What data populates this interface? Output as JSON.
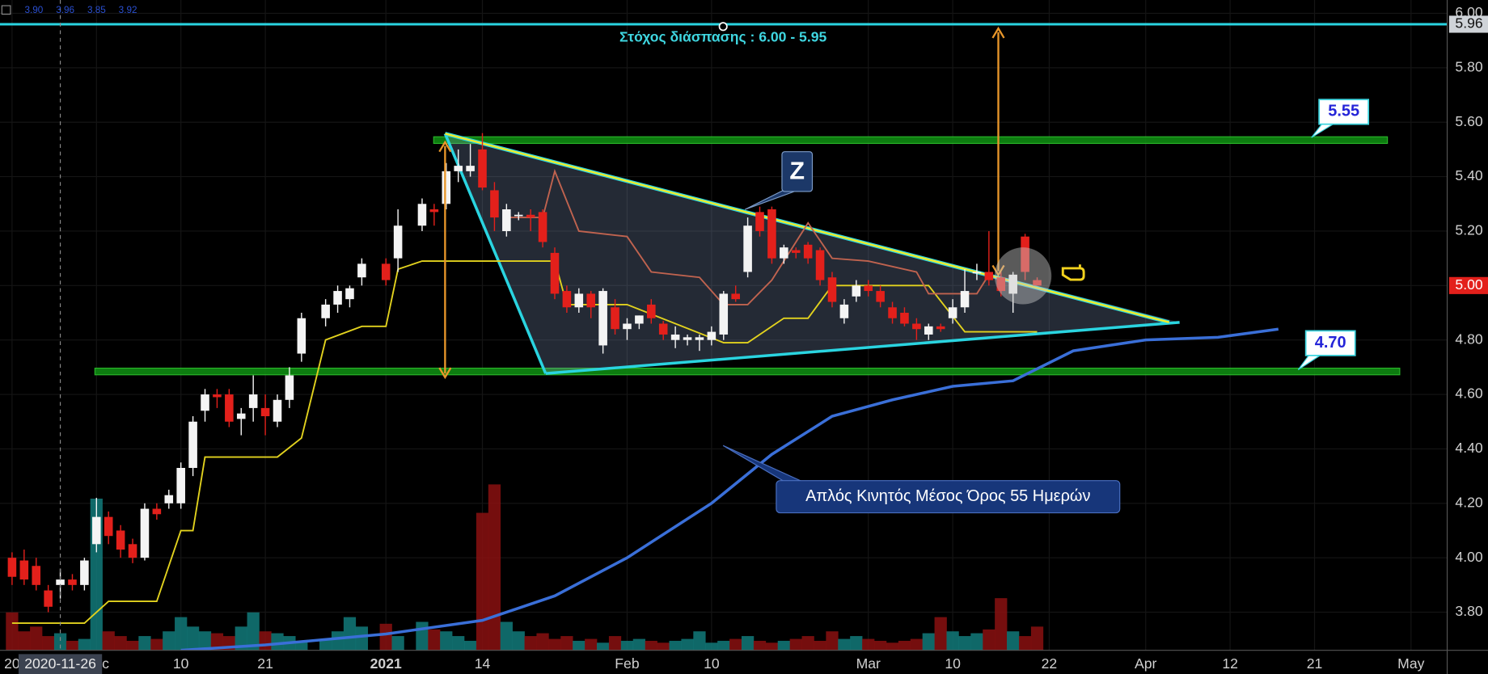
{
  "chart_data": {
    "type": "candlestick",
    "x": [
      "2020-11-20",
      "2020-11-23",
      "2020-11-24",
      "2020-11-25",
      "2020-11-26",
      "2020-11-27",
      "2020-11-30",
      "2020-12-01",
      "2020-12-02",
      "2020-12-03",
      "2020-12-04",
      "2020-12-07",
      "2020-12-08",
      "2020-12-09",
      "2020-12-10",
      "2020-12-11",
      "2020-12-14",
      "2020-12-15",
      "2020-12-16",
      "2020-12-17",
      "2020-12-18",
      "2020-12-21",
      "2020-12-22",
      "2020-12-23",
      "2020-12-24",
      "2020-12-28",
      "2020-12-29",
      "2020-12-30",
      "2020-12-31",
      "2021-01-04",
      "2021-01-05",
      "2021-01-07",
      "2021-01-08",
      "2021-01-11",
      "2021-01-12",
      "2021-01-13",
      "2021-01-14",
      "2021-01-15",
      "2021-01-18",
      "2021-01-19",
      "2021-01-20",
      "2021-01-21",
      "2021-01-22",
      "2021-01-25",
      "2021-01-26",
      "2021-01-27",
      "2021-01-28",
      "2021-01-29",
      "2021-02-01",
      "2021-02-02",
      "2021-02-03",
      "2021-02-04",
      "2021-02-05",
      "2021-02-08",
      "2021-02-09",
      "2021-02-10",
      "2021-02-11",
      "2021-02-12",
      "2021-02-15",
      "2021-02-16",
      "2021-02-17",
      "2021-02-18",
      "2021-02-19",
      "2021-02-22",
      "2021-02-23",
      "2021-02-24",
      "2021-02-25",
      "2021-02-26",
      "2021-03-01",
      "2021-03-02",
      "2021-03-03",
      "2021-03-04",
      "2021-03-05",
      "2021-03-08",
      "2021-03-09",
      "2021-03-10",
      "2021-03-11",
      "2021-03-12",
      "2021-03-15",
      "2021-03-16",
      "2021-03-17",
      "2021-03-18",
      "2021-03-19"
    ],
    "open": [
      4.0,
      3.99,
      3.97,
      3.88,
      3.9,
      3.92,
      3.9,
      4.05,
      4.15,
      4.1,
      4.05,
      4.0,
      4.18,
      4.2,
      4.2,
      4.33,
      4.54,
      4.6,
      4.6,
      4.51,
      4.55,
      4.55,
      4.5,
      4.58,
      4.75,
      4.88,
      4.93,
      4.95,
      5.03,
      5.08,
      5.1,
      5.22,
      5.28,
      5.3,
      5.42,
      5.42,
      5.5,
      5.35,
      5.2,
      5.26,
      5.26,
      5.27,
      5.12,
      4.98,
      4.92,
      4.97,
      4.78,
      4.92,
      4.84,
      4.86,
      4.93,
      4.86,
      4.8,
      4.8,
      4.8,
      4.8,
      4.82,
      4.97,
      5.05,
      5.27,
      5.28,
      5.1,
      5.13,
      5.15,
      5.13,
      5.03,
      4.88,
      4.96,
      5.0,
      4.98,
      4.92,
      4.9,
      4.86,
      4.82,
      4.85,
      4.88,
      4.92,
      5.05,
      5.05,
      5.03,
      4.97,
      5.18,
      5.02
    ],
    "high": [
      4.02,
      4.03,
      4.0,
      3.9,
      3.96,
      3.94,
      4.0,
      4.22,
      4.17,
      4.12,
      4.07,
      4.2,
      4.2,
      4.25,
      4.35,
      4.52,
      4.62,
      4.62,
      4.62,
      4.55,
      4.67,
      4.6,
      4.6,
      4.7,
      4.9,
      4.95,
      5.0,
      5.0,
      5.1,
      5.1,
      5.28,
      5.32,
      5.3,
      5.45,
      5.5,
      5.52,
      5.56,
      5.38,
      5.3,
      5.27,
      5.28,
      5.28,
      5.14,
      5.0,
      4.99,
      4.98,
      4.99,
      4.95,
      4.88,
      4.89,
      4.95,
      4.87,
      4.85,
      4.82,
      4.82,
      4.85,
      4.98,
      5.0,
      5.25,
      5.29,
      5.29,
      5.15,
      5.14,
      5.16,
      5.14,
      5.05,
      4.95,
      5.02,
      5.02,
      5.0,
      4.94,
      4.92,
      4.88,
      4.86,
      4.86,
      4.95,
      5.06,
      5.08,
      5.2,
      5.05,
      5.05,
      5.19,
      5.03
    ],
    "low": [
      3.9,
      3.9,
      3.88,
      3.8,
      3.85,
      3.88,
      3.88,
      4.02,
      4.05,
      4.0,
      3.98,
      3.99,
      4.14,
      4.18,
      4.18,
      4.3,
      4.5,
      4.55,
      4.48,
      4.45,
      4.5,
      4.45,
      4.48,
      4.55,
      4.72,
      4.85,
      4.9,
      4.92,
      5.0,
      5.0,
      5.05,
      5.2,
      5.22,
      5.28,
      5.38,
      5.4,
      5.35,
      5.2,
      5.18,
      5.24,
      5.2,
      5.14,
      4.95,
      4.9,
      4.9,
      4.88,
      4.75,
      4.82,
      4.8,
      4.84,
      4.86,
      4.8,
      4.77,
      4.78,
      4.76,
      4.78,
      4.8,
      4.94,
      5.03,
      5.18,
      5.08,
      5.08,
      5.1,
      5.08,
      5.0,
      4.92,
      4.86,
      4.94,
      4.96,
      4.92,
      4.86,
      4.85,
      4.8,
      4.8,
      4.83,
      4.86,
      4.9,
      5.02,
      5.0,
      4.96,
      4.9,
      5.02,
      5.0
    ],
    "close": [
      3.93,
      3.92,
      3.9,
      3.82,
      3.92,
      3.9,
      3.99,
      4.15,
      4.08,
      4.03,
      4.0,
      4.18,
      4.16,
      4.23,
      4.33,
      4.5,
      4.6,
      4.59,
      4.5,
      4.53,
      4.6,
      4.52,
      4.58,
      4.67,
      4.88,
      4.93,
      4.98,
      4.99,
      5.08,
      5.02,
      5.22,
      5.3,
      5.27,
      5.42,
      5.44,
      5.44,
      5.36,
      5.25,
      5.28,
      5.26,
      5.25,
      5.16,
      4.97,
      4.92,
      4.97,
      4.92,
      4.98,
      4.84,
      4.86,
      4.89,
      4.88,
      4.82,
      4.82,
      4.81,
      4.81,
      4.83,
      4.97,
      4.95,
      5.22,
      5.2,
      5.1,
      5.14,
      5.12,
      5.1,
      5.02,
      4.94,
      4.93,
      5.0,
      4.98,
      4.94,
      4.88,
      4.86,
      4.84,
      4.85,
      4.84,
      4.92,
      4.98,
      5.05,
      5.02,
      4.98,
      5.04,
      5.05,
      5.0
    ],
    "volume": [
      40,
      20,
      25,
      15,
      18,
      10,
      12,
      160,
      20,
      15,
      10,
      15,
      12,
      20,
      35,
      25,
      20,
      18,
      15,
      25,
      40,
      20,
      18,
      15,
      10,
      12,
      20,
      35,
      25,
      28,
      15,
      30,
      22,
      20,
      15,
      10,
      145,
      175,
      30,
      20,
      15,
      18,
      12,
      15,
      10,
      12,
      8,
      15,
      10,
      12,
      10,
      8,
      10,
      12,
      20,
      8,
      10,
      12,
      15,
      10,
      8,
      10,
      12,
      15,
      10,
      20,
      12,
      15,
      12,
      10,
      8,
      10,
      12,
      18,
      35,
      20,
      15,
      18,
      22,
      55,
      20,
      15,
      25
    ],
    "up_color": "#f4f4f4",
    "down_color": "#e3201b",
    "volume_up_color": "#127a7a",
    "volume_down_color": "#8a1010",
    "indicators": [
      {
        "color": "#3a6fd8",
        "x": [
          "2020-12-10",
          "2020-12-21",
          "2021-01-04",
          "2021-01-14",
          "2021-01-22",
          "2021-02-01",
          "2021-02-10",
          "2021-02-17",
          "2021-02-24",
          "2021-03-03",
          "2021-03-10",
          "2021-03-17",
          "2021-03-24",
          "2021-04-01",
          "2021-04-09",
          "2021-04-16"
        ],
        "values": [
          3.66,
          3.68,
          3.72,
          3.77,
          3.86,
          4.0,
          4.2,
          4.38,
          4.52,
          4.58,
          4.63,
          4.65,
          4.76,
          4.8,
          4.81,
          4.84
        ]
      },
      {
        "color": "#e2d21e",
        "x": [
          "2020-11-20",
          "2020-11-30",
          "2020-12-02",
          "2020-12-08",
          "2020-12-10",
          "2020-12-11",
          "2020-12-14",
          "2020-12-22",
          "2020-12-24",
          "2020-12-28",
          "2020-12-31",
          "2021-01-04",
          "2021-01-05",
          "2021-01-07",
          "2021-01-22",
          "2021-01-25",
          "2021-02-01",
          "2021-02-11",
          "2021-02-15",
          "2021-02-18",
          "2021-02-22",
          "2021-02-24",
          "2021-03-08",
          "2021-03-11",
          "2021-03-19"
        ],
        "values": [
          3.76,
          3.76,
          3.84,
          3.84,
          4.1,
          4.1,
          4.37,
          4.37,
          4.44,
          4.8,
          4.85,
          4.85,
          5.06,
          5.09,
          5.09,
          4.93,
          4.93,
          4.79,
          4.79,
          4.88,
          4.88,
          5.0,
          5.0,
          4.83,
          4.83
        ]
      },
      {
        "color": "#c0634f",
        "x": [
          "2021-01-18",
          "2021-01-21",
          "2021-01-22",
          "2021-01-26",
          "2021-02-01",
          "2021-02-03",
          "2021-02-09",
          "2021-02-11",
          "2021-02-15",
          "2021-02-17",
          "2021-02-22",
          "2021-02-24",
          "2021-03-01",
          "2021-03-05",
          "2021-03-08",
          "2021-03-12",
          "2021-03-15"
        ],
        "values": [
          5.25,
          5.25,
          5.42,
          5.2,
          5.18,
          5.05,
          5.03,
          4.93,
          4.93,
          5.02,
          5.23,
          5.1,
          5.09,
          5.05,
          4.97,
          4.97,
          5.04
        ]
      }
    ],
    "levels": [
      5.55,
      {
        "value": 4.7,
        "label": "4.70"
      }
    ],
    "target_line": {
      "value": 5.96,
      "label": "5.96"
    },
    "last_price": {
      "value": 5,
      "label": "5.00"
    },
    "target_label": "Στόχος διάσπασης : 6.00 - 5.95",
    "pattern_label": "Z",
    "sma_label": "Απλός Κινητός Μέσος Όρος 55 Ημερών",
    "crosshair": {
      "date": "2020-11-26",
      "ohlc": [
        {
          "value": 3.9,
          "label": "3.90"
        },
        3.96,
        3.85,
        3.92
      ]
    },
    "xlim": [
      "2020-11-19",
      "2021-05-06"
    ],
    "xticks": [
      {
        "value": "2020-11-20",
        "label": "20"
      },
      {
        "value": "2020-12-01",
        "label": "Dec"
      },
      {
        "value": "2020-12-10",
        "label": "10"
      },
      {
        "value": "2020-12-21",
        "label": "21"
      },
      {
        "value": "2021-01-04",
        "label": "2021"
      },
      {
        "value": "2021-01-14",
        "label": "14"
      },
      {
        "value": "2021-02-01",
        "label": "Feb"
      },
      {
        "value": "2021-02-10",
        "label": "10"
      },
      {
        "value": "2021-03-01",
        "label": "Mar"
      },
      {
        "value": "2021-03-10",
        "label": "10"
      },
      {
        "value": "2021-03-22",
        "label": "22"
      },
      {
        "value": "2021-04-01",
        "label": "Apr"
      },
      {
        "value": "2021-04-12",
        "label": "12"
      },
      {
        "value": "2021-04-21",
        "label": "21"
      },
      {
        "value": "2021-05-03",
        "label": "May"
      }
    ],
    "ylim": [
      3.66,
      6.049
    ],
    "yticks": [
      {
        "value": 3.8,
        "label": "3.80"
      },
      {
        "value": 4,
        "label": "4.00"
      },
      {
        "value": 4.2,
        "label": "4.20"
      },
      {
        "value": 4.4,
        "label": "4.40"
      },
      {
        "value": 4.6,
        "label": "4.60"
      },
      {
        "value": 4.8,
        "label": "4.80"
      },
      {
        "value": 5,
        "label": "5.00"
      },
      {
        "value": 5.2,
        "label": "5.20"
      },
      {
        "value": 5.4,
        "label": "5.40"
      },
      {
        "value": 5.6,
        "label": "5.60"
      },
      {
        "value": 5.8,
        "label": "5.80"
      },
      {
        "value": 6,
        "label": "6.00"
      }
    ],
    "grid": true
  }
}
